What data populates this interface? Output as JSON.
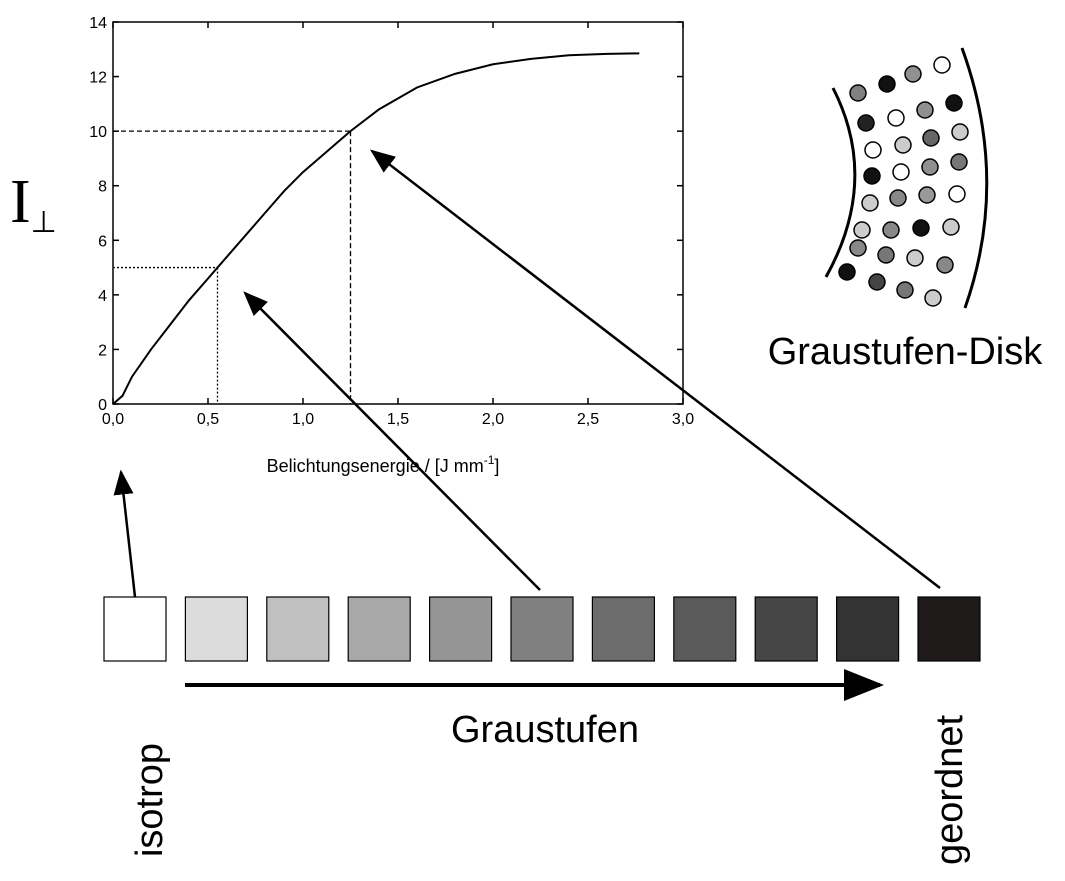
{
  "chart_data": {
    "type": "line",
    "x": [
      0,
      0.05,
      0.1,
      0.2,
      0.3,
      0.4,
      0.5,
      0.55,
      0.7,
      0.8,
      0.9,
      1.0,
      1.1,
      1.25,
      1.4,
      1.6,
      1.8,
      2.0,
      2.2,
      2.4,
      2.6,
      2.77
    ],
    "values": [
      0,
      0.3,
      1.0,
      2.0,
      2.9,
      3.8,
      4.6,
      5.0,
      6.2,
      7.0,
      7.8,
      8.5,
      9.1,
      10.0,
      10.8,
      11.6,
      12.1,
      12.45,
      12.65,
      12.78,
      12.83,
      12.85
    ],
    "color": "#000000",
    "xlim": [
      0,
      3
    ],
    "ylim": [
      0,
      14
    ],
    "xticks": [
      {
        "value": 0,
        "label": "0,0"
      },
      {
        "value": 0.5,
        "label": "0,5"
      },
      {
        "value": 1,
        "label": "1,0"
      },
      {
        "value": 1.5,
        "label": "1,5"
      },
      {
        "value": 2,
        "label": "2,0"
      },
      {
        "value": 2.5,
        "label": "2,5"
      },
      {
        "value": 3,
        "label": "3,0"
      }
    ],
    "yticks": [
      0,
      2,
      4,
      6,
      8,
      10,
      12,
      14
    ],
    "xlabel": {
      "text": "Belichtungsenergie / [J mm",
      "sup": "-1",
      "end": "]"
    },
    "ylabel": {
      "text": "I",
      "sub": "⊥"
    },
    "guides": [
      {
        "x": 0.55,
        "y": 5,
        "style": "dotted"
      },
      {
        "x": 1.25,
        "y": 10,
        "style": "dashed"
      }
    ],
    "grid": false
  },
  "diagram": {
    "swatches": [
      "#ffffff",
      "#dcdcdc",
      "#c0c0c0",
      "#a8a8a8",
      "#959595",
      "#808080",
      "#6c6c6c",
      "#5a5a5a",
      "#464646",
      "#333333",
      "#1e1a1a"
    ],
    "label_left": "isotrop",
    "label_center": "Graustufen",
    "label_right": "geordnet",
    "disk_label": "Graustufen-Disk"
  }
}
